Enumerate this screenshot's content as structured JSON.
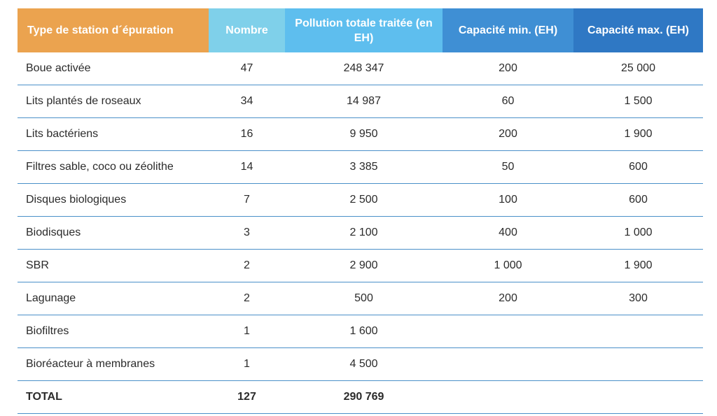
{
  "table": {
    "headers": [
      {
        "label": "Type de station d´épuration",
        "color": "#eba34f"
      },
      {
        "label": "Nombre",
        "color": "#7fd0ea"
      },
      {
        "label": "Pollution totale traitée (en EH)",
        "color": "#5ebeee"
      },
      {
        "label": "Capacité min. (EH)",
        "color": "#3f8fd4"
      },
      {
        "label": "Capacité max. (EH)",
        "color": "#2f78c4"
      }
    ],
    "rows": [
      [
        "Boue activée",
        "47",
        "248 347",
        "200",
        "25 000"
      ],
      [
        "Lits plantés de roseaux",
        "34",
        "14 987",
        "60",
        "1 500"
      ],
      [
        "Lits bactériens",
        "16",
        "9 950",
        "200",
        "1 900"
      ],
      [
        "Filtres sable, coco ou zéolithe",
        "14",
        "3 385",
        "50",
        "600"
      ],
      [
        "Disques biologiques",
        "7",
        "2 500",
        "100",
        "600"
      ],
      [
        "Biodisques",
        "3",
        "2 100",
        "400",
        "1 000"
      ],
      [
        "SBR",
        "2",
        "2 900",
        "1 000",
        "1 900"
      ],
      [
        "Lagunage",
        "2",
        "500",
        "200",
        "300"
      ],
      [
        "Biofiltres",
        "1",
        "1 600",
        "",
        ""
      ],
      [
        "Bioréacteur à membranes",
        "1",
        "4 500",
        "",
        ""
      ]
    ],
    "total": [
      "TOTAL",
      "127",
      "290 769",
      "",
      ""
    ],
    "border_color": "#4a90c9"
  }
}
